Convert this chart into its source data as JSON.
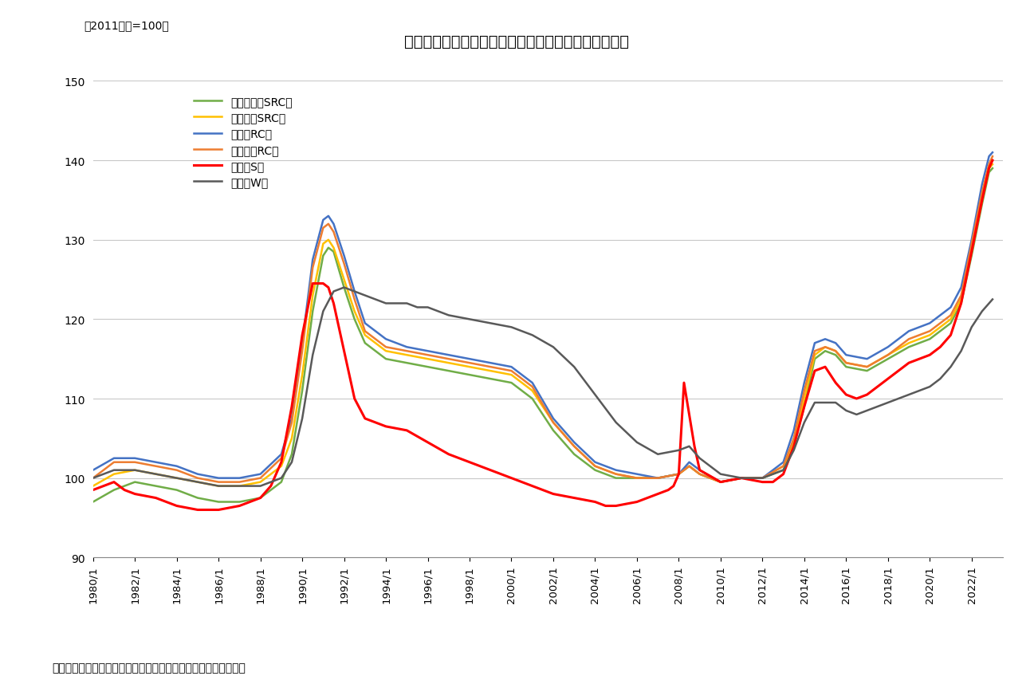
{
  "title": "図表２　建築費指数の推移（用途別、躯体の構造別）",
  "subtitle": "（2011平均=100）",
  "footer": "（資料）　建設物価調査会の公表からニッセイ基礎研究所が作成",
  "ylim": [
    90,
    150
  ],
  "yticks": [
    90,
    100,
    110,
    120,
    130,
    140,
    150
  ],
  "background_color": "#ffffff",
  "series": [
    {
      "label": "集合住宅　SRC造",
      "color": "#70ad47"
    },
    {
      "label": "事務所　SRC造",
      "color": "#ffc000"
    },
    {
      "label": "店舗　RC造",
      "color": "#4472c4"
    },
    {
      "label": "ホテル　RC造",
      "color": "#ed7d31"
    },
    {
      "label": "倉庫　S造",
      "color": "#ff0000"
    },
    {
      "label": "住宅　W造",
      "color": "#595959"
    }
  ],
  "xtick_years": [
    1980,
    1982,
    1984,
    1986,
    1988,
    1990,
    1992,
    1994,
    1996,
    1998,
    2000,
    2002,
    2004,
    2006,
    2008,
    2010,
    2012,
    2014,
    2016,
    2018,
    2020,
    2022
  ]
}
